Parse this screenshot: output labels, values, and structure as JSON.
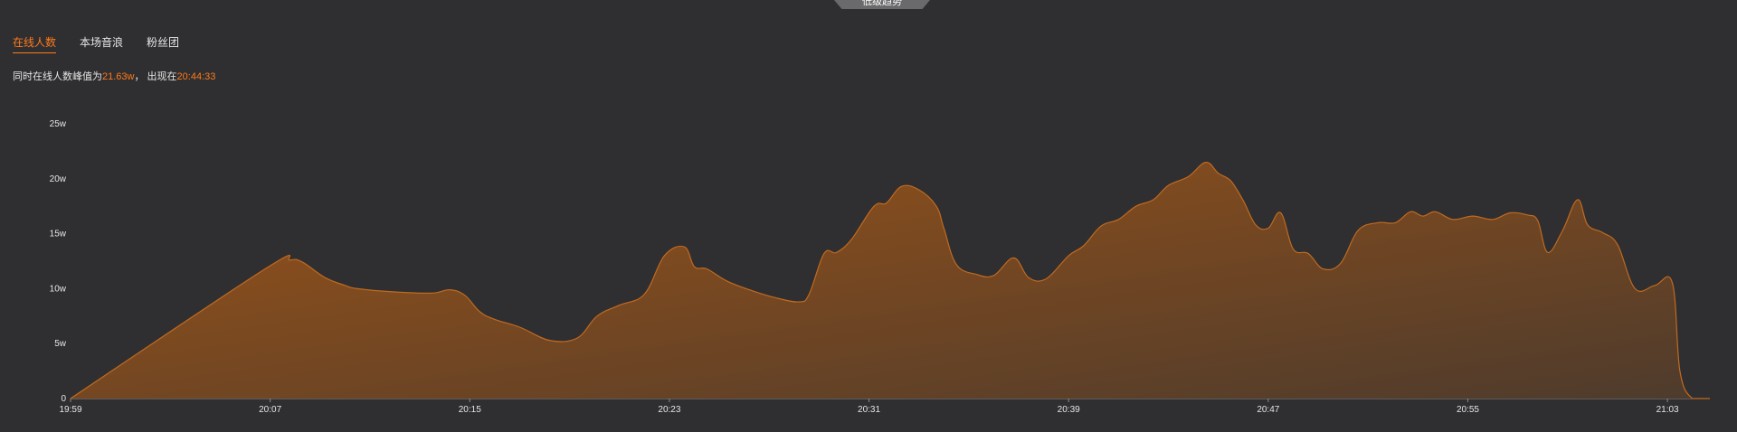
{
  "top_tab": {
    "label": "低级趋势"
  },
  "tabs": [
    {
      "label": "在线人数",
      "active": true
    },
    {
      "label": "本场音浪",
      "active": false
    },
    {
      "label": "粉丝团",
      "active": false
    }
  ],
  "summary": {
    "prefix": "同时在线人数峰值为",
    "peak_value": "21.63w",
    "middle": "，  出现在",
    "peak_time": "20:44:33"
  },
  "colors": {
    "background": "#2f2f31",
    "accent": "#ff7a1a",
    "area_top": "#9a5318",
    "area_bottom": "#4e3b2c",
    "line": "#c06a20",
    "axis": "#8a8a8a"
  },
  "chart_data": {
    "type": "area",
    "title": "",
    "xlabel": "",
    "ylabel": "",
    "unit": "w",
    "ylim": [
      0,
      25
    ],
    "y_ticks": [
      {
        "value": 0,
        "label": "0"
      },
      {
        "value": 5,
        "label": "5w"
      },
      {
        "value": 10,
        "label": "10w"
      },
      {
        "value": 15,
        "label": "15w"
      },
      {
        "value": 20,
        "label": "20w"
      },
      {
        "value": 25,
        "label": "25w"
      }
    ],
    "x_ticks": [
      {
        "value": 0,
        "label": "19:59"
      },
      {
        "value": 8,
        "label": "20:07"
      },
      {
        "value": 16,
        "label": "20:15"
      },
      {
        "value": 24,
        "label": "20:23"
      },
      {
        "value": 32,
        "label": "20:31"
      },
      {
        "value": 40,
        "label": "20:39"
      },
      {
        "value": 48,
        "label": "20:47"
      },
      {
        "value": 56,
        "label": "20:55"
      },
      {
        "value": 64,
        "label": "21:03"
      }
    ],
    "xlim": [
      0,
      65.7
    ],
    "grid": false,
    "legend": "none",
    "series": [
      {
        "points": [
          [
            0,
            0
          ],
          [
            7.8,
            11.8
          ],
          [
            8.8,
            12.6
          ],
          [
            9.3,
            12.4
          ],
          [
            10.2,
            11.0
          ],
          [
            11.0,
            10.3
          ],
          [
            11.5,
            10.0
          ],
          [
            13.0,
            9.7
          ],
          [
            14.5,
            9.6
          ],
          [
            15.2,
            9.9
          ],
          [
            15.8,
            9.4
          ],
          [
            16.4,
            7.9
          ],
          [
            17.0,
            7.2
          ],
          [
            18.0,
            6.5
          ],
          [
            19.2,
            5.3
          ],
          [
            20.3,
            5.5
          ],
          [
            21.1,
            7.5
          ],
          [
            22.0,
            8.5
          ],
          [
            23.0,
            9.5
          ],
          [
            23.8,
            13.0
          ],
          [
            24.6,
            13.8
          ],
          [
            25.0,
            12.0
          ],
          [
            25.5,
            11.8
          ],
          [
            26.3,
            10.7
          ],
          [
            27.2,
            9.9
          ],
          [
            28.2,
            9.2
          ],
          [
            29.2,
            8.8
          ],
          [
            29.6,
            9.5
          ],
          [
            30.2,
            13.2
          ],
          [
            30.7,
            13.3
          ],
          [
            31.3,
            14.5
          ],
          [
            32.2,
            17.5
          ],
          [
            32.7,
            17.8
          ],
          [
            33.3,
            19.3
          ],
          [
            34.0,
            19.0
          ],
          [
            34.7,
            17.5
          ],
          [
            35.0,
            15.5
          ],
          [
            35.5,
            12.2
          ],
          [
            36.3,
            11.3
          ],
          [
            37.0,
            11.2
          ],
          [
            37.8,
            12.8
          ],
          [
            38.4,
            11.0
          ],
          [
            39.1,
            10.9
          ],
          [
            40.0,
            13.0
          ],
          [
            40.6,
            13.9
          ],
          [
            41.3,
            15.7
          ],
          [
            42.0,
            16.3
          ],
          [
            42.7,
            17.5
          ],
          [
            43.4,
            18.1
          ],
          [
            44.0,
            19.4
          ],
          [
            44.8,
            20.2
          ],
          [
            45.5,
            21.5
          ],
          [
            46.0,
            20.5
          ],
          [
            46.5,
            19.8
          ],
          [
            47.0,
            18.0
          ],
          [
            47.5,
            15.8
          ],
          [
            48.0,
            15.5
          ],
          [
            48.5,
            16.9
          ],
          [
            49.0,
            13.6
          ],
          [
            49.6,
            13.2
          ],
          [
            50.2,
            11.8
          ],
          [
            50.9,
            12.3
          ],
          [
            51.6,
            15.3
          ],
          [
            52.4,
            16.0
          ],
          [
            53.1,
            16.0
          ],
          [
            53.7,
            17.0
          ],
          [
            54.2,
            16.6
          ],
          [
            54.7,
            17.0
          ],
          [
            55.4,
            16.3
          ],
          [
            56.2,
            16.6
          ],
          [
            57.0,
            16.3
          ],
          [
            57.7,
            16.9
          ],
          [
            58.4,
            16.7
          ],
          [
            58.8,
            16.2
          ],
          [
            59.2,
            13.3
          ],
          [
            59.8,
            15.3
          ],
          [
            60.4,
            18.1
          ],
          [
            60.8,
            15.8
          ],
          [
            61.4,
            15.1
          ],
          [
            62.0,
            14.0
          ],
          [
            62.7,
            10.0
          ],
          [
            63.5,
            10.3
          ],
          [
            64.2,
            10.5
          ],
          [
            64.5,
            2.5
          ],
          [
            65.0,
            0
          ],
          [
            65.7,
            0
          ]
        ]
      }
    ]
  }
}
